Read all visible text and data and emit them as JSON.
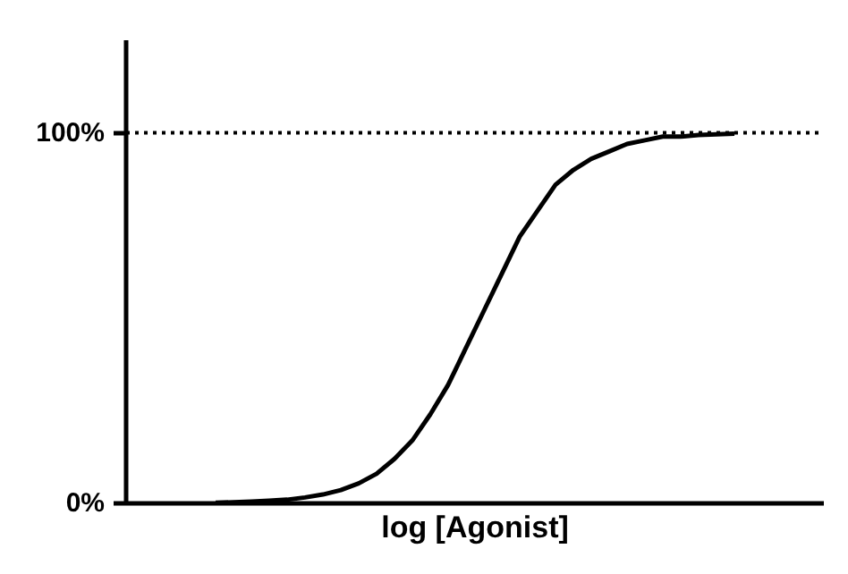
{
  "chart_data": {
    "type": "line",
    "xlabel": "log [Agonist]",
    "categories": [
      null,
      null,
      null,
      null,
      null,
      null,
      null,
      null,
      null,
      null,
      null,
      null,
      null,
      null,
      null,
      null,
      null,
      null,
      null,
      null,
      null,
      null,
      null,
      null,
      null,
      null,
      null,
      null,
      null,
      null,
      null,
      null,
      null,
      null,
      null,
      null,
      null,
      null,
      null,
      null
    ],
    "series": [
      {
        "color": "#000000",
        "values": [
          null,
          null,
          null,
          null,
          null,
          0.2,
          0.3,
          0.5,
          0.7,
          1,
          1.6,
          2.4,
          3.6,
          5.4,
          8,
          12,
          17,
          24,
          32,
          42,
          52,
          62,
          72,
          79,
          86,
          90,
          93,
          95,
          97,
          98,
          99,
          99,
          99.4,
          99.6,
          99.8,
          null,
          null,
          null,
          null,
          null
        ]
      }
    ],
    "ylim": [
      0,
      125
    ],
    "yticks": [
      {
        "value": 0,
        "label": "0%"
      },
      {
        "value": 100,
        "label": "100%"
      }
    ],
    "tick_labels": "y",
    "grid": false,
    "marker": "none",
    "line_style": "solid",
    "ref_lines": [
      {
        "axis": "y",
        "value": 100,
        "label": null,
        "color": "#000000",
        "line_style": "dotted"
      }
    ]
  }
}
